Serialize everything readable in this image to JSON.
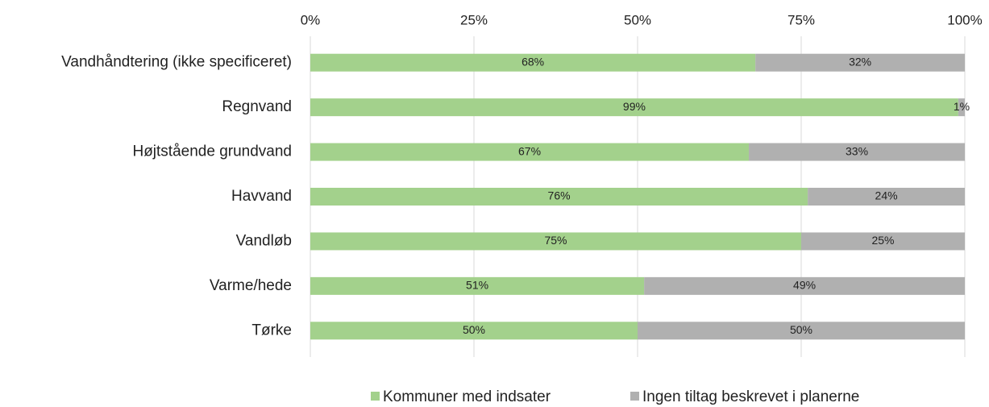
{
  "chart_data": {
    "type": "bar",
    "orientation": "horizontal",
    "stacked": true,
    "categories": [
      "Vandhåndtering (ikke specificeret)",
      "Regnvand",
      "Højtstående grundvand",
      "Havvand",
      "Vandløb",
      "Varme/hede",
      "Tørke"
    ],
    "series": [
      {
        "name": "Kommuner med indsater",
        "color": "#a3d18c",
        "values": [
          68,
          99,
          67,
          76,
          75,
          51,
          50
        ],
        "value_labels": [
          "68%",
          "99%",
          "67%",
          "76%",
          "75%",
          "51%",
          "50%"
        ]
      },
      {
        "name": "Ingen tiltag beskrevet i planerne",
        "color": "#b0b0b0",
        "values": [
          32,
          1,
          33,
          24,
          25,
          49,
          50
        ],
        "value_labels": [
          "32%",
          "1%",
          "33%",
          "24%",
          "25%",
          "49%",
          "50%"
        ]
      }
    ],
    "xlim": [
      0,
      100
    ],
    "xticks": [
      {
        "value": 0,
        "label": "0%"
      },
      {
        "value": 25,
        "label": "25%"
      },
      {
        "value": 50,
        "label": "50%"
      },
      {
        "value": 75,
        "label": "75%"
      },
      {
        "value": 100,
        "label": "100%"
      }
    ],
    "grid": true
  }
}
